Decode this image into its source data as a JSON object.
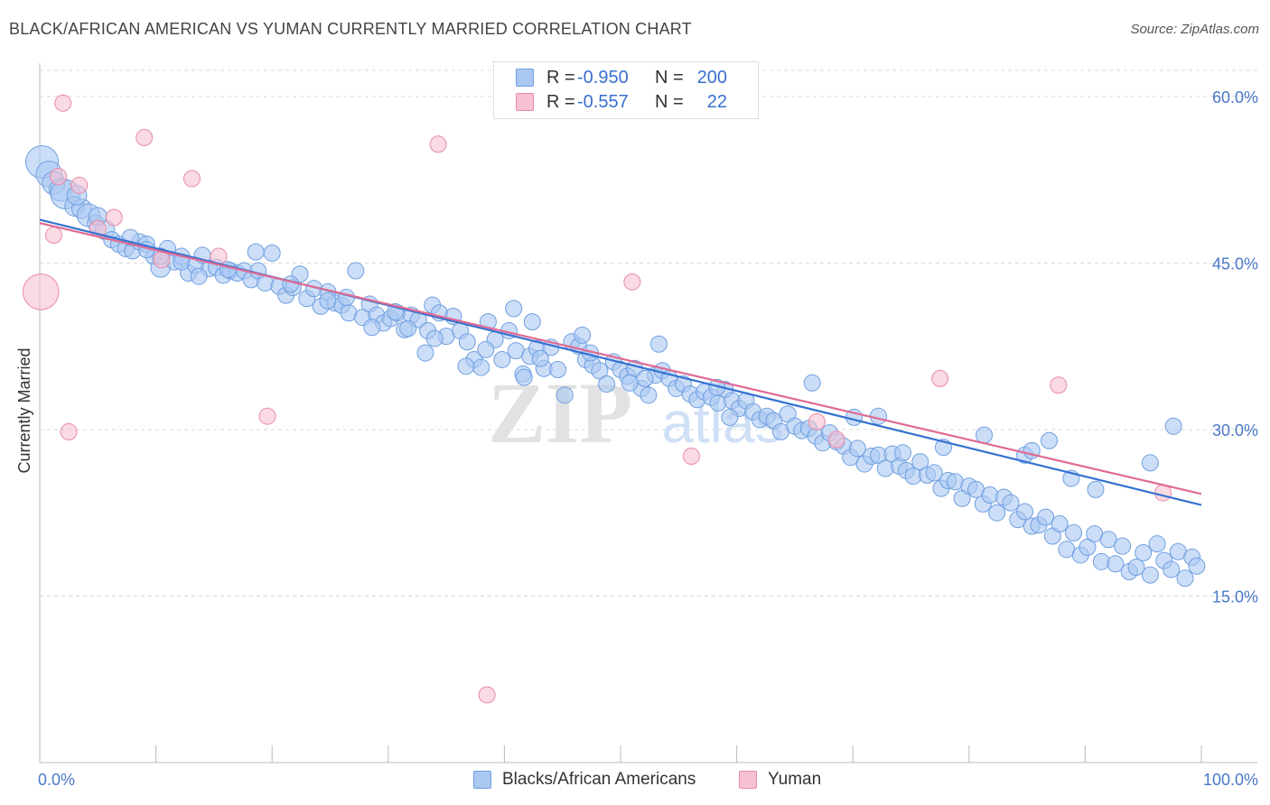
{
  "header": {
    "title": "BLACK/AFRICAN AMERICAN VS YUMAN CURRENTLY MARRIED CORRELATION CHART",
    "source": "Source: ZipAtlas.com"
  },
  "watermark": {
    "zip": "ZIP",
    "atlas": "atlas"
  },
  "legend_top": [
    {
      "r_label": "R =",
      "r_value": "-0.950",
      "n_label": "N =",
      "n_value": "200"
    },
    {
      "r_label": "R =",
      "r_value": "-0.557",
      "n_label": "N =",
      "n_value": "22"
    }
  ],
  "legend_bottom": [
    "Blacks/African Americans",
    "Yuman"
  ],
  "chart_data": {
    "type": "scatter",
    "title": "BLACK/AFRICAN AMERICAN VS YUMAN CURRENTLY MARRIED CORRELATION CHART",
    "xlabel": "",
    "ylabel": "Currently Married",
    "xlim": [
      0,
      100
    ],
    "ylim": [
      0,
      63
    ],
    "x_tick_labels": [
      "0.0%",
      "100.0%"
    ],
    "y_ticks": [
      15,
      30,
      45,
      60
    ],
    "y_tick_labels": [
      "15.0%",
      "30.0%",
      "45.0%",
      "60.0%"
    ],
    "grid": true,
    "colors": {
      "blue_fill": "#aac8f2",
      "blue_stroke": "#6f9fe0",
      "blue_line": "#3572d0",
      "pink_fill": "#f6c2d2",
      "pink_stroke": "#e98aa7",
      "pink_line": "#e06a93",
      "axis_text": "#4a78c9",
      "grid": "#d8d8d8"
    },
    "series": [
      {
        "name": "Blacks/African Americans",
        "r": -0.95,
        "n": 200,
        "trend": {
          "x": [
            0,
            100
          ],
          "y": [
            48.9,
            23.2
          ]
        },
        "points": [
          [
            0.2,
            54.1,
            2
          ],
          [
            0.8,
            53.0,
            1.6
          ],
          [
            1.2,
            52.2,
            1.4
          ],
          [
            1.8,
            51.6,
            1.4
          ],
          [
            2.2,
            51.2,
            1.8
          ],
          [
            3.0,
            50.1,
            1.2
          ],
          [
            3.6,
            49.9,
            1.2
          ],
          [
            4.2,
            49.3,
            1.4
          ],
          [
            4.8,
            48.6,
            1
          ],
          [
            5.6,
            48.0,
            1.2
          ],
          [
            6.2,
            47.1,
            1
          ],
          [
            6.8,
            46.7,
            1
          ],
          [
            7.4,
            46.3,
            1
          ],
          [
            8.0,
            46.1,
            1
          ],
          [
            8.6,
            46.9,
            1
          ],
          [
            9.2,
            46.7,
            1
          ],
          [
            9.8,
            45.6,
            1
          ],
          [
            10.4,
            44.6,
            1.2
          ],
          [
            11.0,
            46.3,
            1
          ],
          [
            11.6,
            45.1,
            1
          ],
          [
            12.2,
            45.6,
            1
          ],
          [
            12.8,
            44.1,
            1
          ],
          [
            13.4,
            44.8,
            1
          ],
          [
            14.0,
            45.7,
            1
          ],
          [
            14.6,
            44.5,
            1
          ],
          [
            15.2,
            44.6,
            1
          ],
          [
            15.8,
            43.9,
            1
          ],
          [
            16.4,
            44.3,
            1
          ],
          [
            17.0,
            44.1,
            1
          ],
          [
            17.6,
            44.3,
            1
          ],
          [
            18.2,
            43.5,
            1
          ],
          [
            18.8,
            44.3,
            1
          ],
          [
            19.4,
            43.2,
            1
          ],
          [
            20.0,
            45.9,
            1
          ],
          [
            20.6,
            42.9,
            1
          ],
          [
            21.2,
            42.1,
            1
          ],
          [
            21.8,
            42.8,
            1
          ],
          [
            22.4,
            44.0,
            1
          ],
          [
            23.0,
            41.8,
            1
          ],
          [
            23.6,
            42.7,
            1
          ],
          [
            24.2,
            41.1,
            1
          ],
          [
            24.8,
            42.4,
            1
          ],
          [
            25.4,
            41.4,
            1
          ],
          [
            26.0,
            41.2,
            1
          ],
          [
            26.6,
            40.5,
            1
          ],
          [
            27.2,
            44.3,
            1
          ],
          [
            27.8,
            40.1,
            1
          ],
          [
            28.4,
            41.3,
            1
          ],
          [
            29.0,
            40.3,
            1
          ],
          [
            29.6,
            39.6,
            1
          ],
          [
            30.2,
            40.0,
            1
          ],
          [
            30.8,
            40.5,
            1
          ],
          [
            31.4,
            39.0,
            1
          ],
          [
            32.0,
            40.3,
            1
          ],
          [
            32.6,
            39.9,
            1
          ],
          [
            33.2,
            36.9,
            1
          ],
          [
            33.8,
            41.2,
            1
          ],
          [
            34.4,
            40.5,
            1
          ],
          [
            35.0,
            38.4,
            1
          ],
          [
            35.6,
            40.2,
            1
          ],
          [
            36.2,
            38.9,
            1
          ],
          [
            36.8,
            37.9,
            1
          ],
          [
            37.4,
            36.3,
            1
          ],
          [
            38.0,
            35.6,
            1
          ],
          [
            38.6,
            39.7,
            1
          ],
          [
            39.2,
            38.1,
            1
          ],
          [
            39.8,
            36.3,
            1
          ],
          [
            40.4,
            38.9,
            1
          ],
          [
            41.0,
            37.1,
            1
          ],
          [
            41.6,
            35.0,
            1
          ],
          [
            42.2,
            36.6,
            1
          ],
          [
            42.8,
            37.3,
            1
          ],
          [
            43.4,
            35.5,
            1
          ],
          [
            44.0,
            37.4,
            1
          ],
          [
            44.6,
            35.4,
            1
          ],
          [
            45.2,
            33.1,
            1
          ],
          [
            45.8,
            37.9,
            1
          ],
          [
            46.4,
            37.5,
            1
          ],
          [
            47.0,
            36.3,
            1
          ],
          [
            47.6,
            35.8,
            1
          ],
          [
            48.2,
            35.3,
            1
          ],
          [
            48.8,
            34.1,
            1
          ],
          [
            49.4,
            36.1,
            1
          ],
          [
            50.0,
            35.4,
            1
          ],
          [
            50.6,
            34.8,
            1
          ],
          [
            51.2,
            35.5,
            1
          ],
          [
            51.8,
            33.7,
            1
          ],
          [
            52.4,
            33.1,
            1
          ],
          [
            53.0,
            34.9,
            1
          ],
          [
            53.6,
            35.3,
            1
          ],
          [
            54.2,
            34.6,
            1
          ],
          [
            54.8,
            33.7,
            1
          ],
          [
            55.4,
            34.1,
            1
          ],
          [
            56.0,
            33.2,
            1
          ],
          [
            56.6,
            32.7,
            1
          ],
          [
            57.2,
            33.4,
            1
          ],
          [
            57.8,
            32.9,
            1
          ],
          [
            58.4,
            32.4,
            1
          ],
          [
            59.0,
            33.6,
            1
          ],
          [
            59.6,
            32.6,
            1
          ],
          [
            60.2,
            31.9,
            1
          ],
          [
            60.8,
            32.6,
            1
          ],
          [
            61.4,
            31.6,
            1
          ],
          [
            62.0,
            30.9,
            1
          ],
          [
            62.6,
            31.2,
            1
          ],
          [
            63.2,
            30.8,
            1
          ],
          [
            63.8,
            29.8,
            1
          ],
          [
            64.4,
            31.4,
            1
          ],
          [
            65.0,
            30.3,
            1
          ],
          [
            65.6,
            29.9,
            1
          ],
          [
            66.2,
            30.1,
            1
          ],
          [
            66.8,
            29.4,
            1
          ],
          [
            67.4,
            28.8,
            1
          ],
          [
            68.0,
            29.7,
            1
          ],
          [
            68.6,
            28.9,
            1
          ],
          [
            69.2,
            28.5,
            1
          ],
          [
            69.8,
            27.5,
            1
          ],
          [
            70.4,
            28.3,
            1
          ],
          [
            71.0,
            26.9,
            1
          ],
          [
            71.6,
            27.6,
            1
          ],
          [
            72.2,
            27.7,
            1
          ],
          [
            72.8,
            26.5,
            1
          ],
          [
            73.4,
            27.8,
            1
          ],
          [
            74.0,
            26.7,
            1
          ],
          [
            74.6,
            26.3,
            1
          ],
          [
            75.2,
            25.8,
            1
          ],
          [
            75.8,
            27.1,
            1
          ],
          [
            76.4,
            25.9,
            1
          ],
          [
            77.0,
            26.1,
            1
          ],
          [
            77.6,
            24.7,
            1
          ],
          [
            78.2,
            25.4,
            1
          ],
          [
            78.8,
            25.3,
            1
          ],
          [
            79.4,
            23.8,
            1
          ],
          [
            80.0,
            24.9,
            1
          ],
          [
            80.6,
            24.6,
            1
          ],
          [
            81.2,
            23.3,
            1
          ],
          [
            81.8,
            24.1,
            1
          ],
          [
            82.4,
            22.5,
            1
          ],
          [
            83.0,
            23.9,
            1
          ],
          [
            83.6,
            23.4,
            1
          ],
          [
            84.2,
            21.9,
            1
          ],
          [
            84.8,
            22.6,
            1
          ],
          [
            85.4,
            21.3,
            1
          ],
          [
            86.0,
            21.4,
            1
          ],
          [
            86.6,
            22.1,
            1
          ],
          [
            87.2,
            20.4,
            1
          ],
          [
            87.8,
            21.5,
            1
          ],
          [
            88.4,
            19.2,
            1
          ],
          [
            89.0,
            20.7,
            1
          ],
          [
            89.6,
            18.7,
            1
          ],
          [
            90.2,
            19.4,
            1
          ],
          [
            90.8,
            20.6,
            1
          ],
          [
            91.4,
            18.1,
            1
          ],
          [
            92.0,
            20.1,
            1
          ],
          [
            92.6,
            17.9,
            1
          ],
          [
            93.2,
            19.5,
            1
          ],
          [
            93.8,
            17.2,
            1
          ],
          [
            94.4,
            17.6,
            1
          ],
          [
            95.0,
            18.9,
            1
          ],
          [
            95.6,
            16.9,
            1
          ],
          [
            96.2,
            19.7,
            1
          ],
          [
            96.8,
            18.2,
            1
          ],
          [
            97.4,
            17.4,
            1
          ],
          [
            98.0,
            19.0,
            1
          ],
          [
            98.6,
            16.6,
            1
          ],
          [
            99.2,
            18.5,
            1
          ],
          [
            99.6,
            17.7,
            1
          ],
          [
            10.4,
            45.6,
            1
          ],
          [
            12.2,
            45.1,
            1
          ],
          [
            30.6,
            40.6,
            1
          ],
          [
            33.4,
            38.9,
            1
          ],
          [
            40.8,
            40.9,
            1
          ],
          [
            42.4,
            39.7,
            1
          ],
          [
            46.7,
            38.5,
            1
          ],
          [
            53.3,
            37.7,
            1
          ],
          [
            58.3,
            33.8,
            1
          ],
          [
            59.4,
            31.1,
            1
          ],
          [
            66.5,
            34.2,
            1
          ],
          [
            70.1,
            31.1,
            1
          ],
          [
            72.2,
            31.2,
            1
          ],
          [
            74.3,
            27.9,
            1
          ],
          [
            77.8,
            28.4,
            1
          ],
          [
            81.3,
            29.5,
            1
          ],
          [
            84.8,
            27.7,
            1
          ],
          [
            85.4,
            28.1,
            1
          ],
          [
            86.9,
            29.0,
            1
          ],
          [
            88.8,
            25.6,
            1
          ],
          [
            90.9,
            24.6,
            1
          ],
          [
            95.6,
            27.0,
            1
          ],
          [
            97.6,
            30.3,
            1
          ],
          [
            3.2,
            51.1,
            1.2
          ],
          [
            5.0,
            49.2,
            1.1
          ],
          [
            7.8,
            47.3,
            1
          ],
          [
            9.2,
            46.2,
            1
          ],
          [
            13.7,
            43.8,
            1
          ],
          [
            16.2,
            44.4,
            1
          ],
          [
            18.6,
            46.0,
            1
          ],
          [
            21.6,
            43.1,
            1
          ],
          [
            24.8,
            41.6,
            1
          ],
          [
            26.4,
            41.9,
            1
          ],
          [
            28.6,
            39.2,
            1
          ],
          [
            31.7,
            39.1,
            1
          ],
          [
            34.0,
            38.2,
            1
          ],
          [
            36.7,
            35.7,
            1
          ],
          [
            38.4,
            37.2,
            1
          ],
          [
            41.7,
            34.7,
            1
          ],
          [
            43.1,
            36.4,
            1
          ],
          [
            47.4,
            36.9,
            1
          ],
          [
            50.8,
            34.2,
            1
          ],
          [
            52.1,
            34.6,
            1
          ]
        ]
      },
      {
        "name": "Yuman",
        "r": -0.557,
        "n": 22,
        "trend": {
          "x": [
            0,
            100
          ],
          "y": [
            48.6,
            24.2
          ]
        },
        "points": [
          [
            0.1,
            42.4,
            2.2
          ],
          [
            1.2,
            47.5,
            1
          ],
          [
            2.0,
            59.4,
            1
          ],
          [
            2.5,
            29.8,
            1
          ],
          [
            3.4,
            52.0,
            1
          ],
          [
            5.0,
            48.1,
            1
          ],
          [
            9.0,
            56.3,
            1
          ],
          [
            10.5,
            45.3,
            1
          ],
          [
            13.1,
            52.6,
            1
          ],
          [
            19.6,
            31.2,
            1
          ],
          [
            34.3,
            55.7,
            1
          ],
          [
            38.5,
            6.1,
            1
          ],
          [
            51.0,
            43.3,
            1
          ],
          [
            56.1,
            27.6,
            1
          ],
          [
            66.9,
            30.7,
            1
          ],
          [
            68.6,
            29.1,
            1
          ],
          [
            77.5,
            34.6,
            1
          ],
          [
            87.7,
            34.0,
            1
          ],
          [
            1.6,
            52.8,
            1
          ],
          [
            6.4,
            49.1,
            1
          ],
          [
            15.4,
            45.6,
            1
          ],
          [
            96.7,
            24.3,
            1
          ]
        ]
      }
    ]
  }
}
